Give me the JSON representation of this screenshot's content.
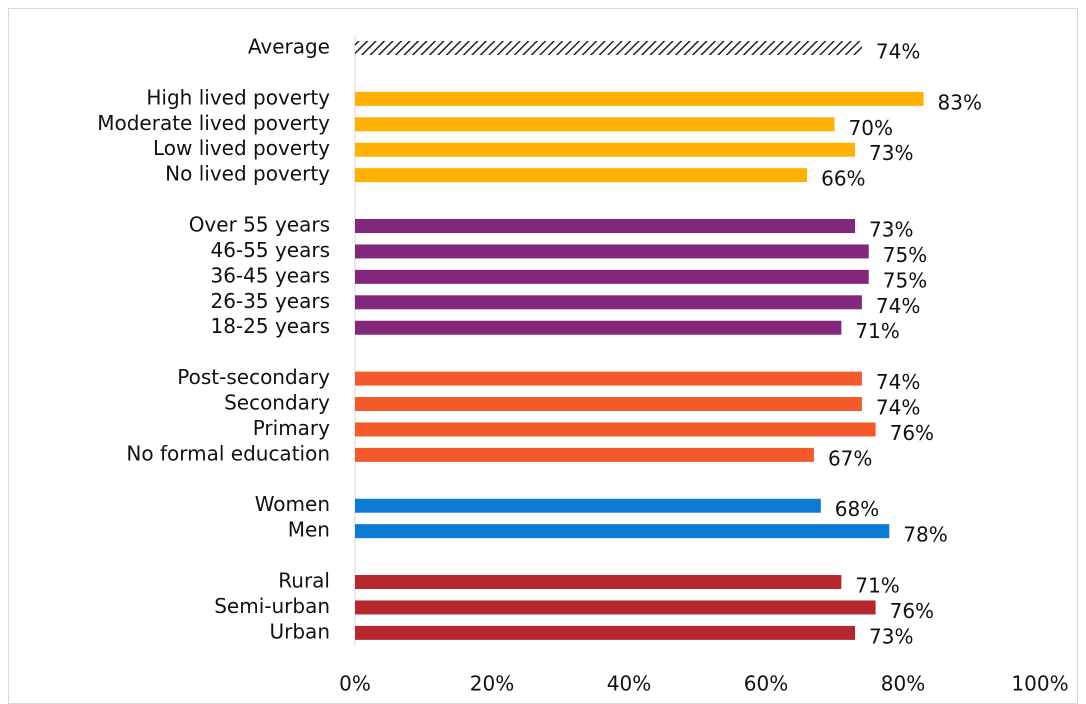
{
  "chart_data": {
    "type": "bar",
    "orientation": "horizontal",
    "categories": [
      "Average",
      null,
      "High lived poverty",
      "Moderate lived poverty",
      "Low lived poverty",
      "No lived poverty",
      null,
      "Over 55 years",
      "46-55 years",
      "36-45 years",
      "26-35 years",
      "18-25 years",
      null,
      "Post-secondary",
      "Secondary",
      "Primary",
      "No formal education",
      null,
      "Women",
      "Men",
      null,
      "Rural",
      "Semi-urban",
      "Urban"
    ],
    "values": [
      74,
      null,
      83,
      70,
      73,
      66,
      null,
      73,
      75,
      75,
      74,
      71,
      null,
      74,
      74,
      76,
      67,
      null,
      68,
      78,
      null,
      71,
      76,
      73
    ],
    "value_labels": [
      "74%",
      null,
      "83%",
      "70%",
      "73%",
      "66%",
      null,
      "73%",
      "75%",
      "75%",
      "74%",
      "71%",
      null,
      "74%",
      "74%",
      "76%",
      "67%",
      null,
      "68%",
      "78%",
      null,
      "71%",
      "76%",
      "73%"
    ],
    "colors": [
      "#222222",
      null,
      "#FFB000",
      "#FFB000",
      "#FFB000",
      "#FFB000",
      null,
      "#83277C",
      "#83277C",
      "#83277C",
      "#83277C",
      "#83277C",
      null,
      "#F55A2C",
      "#F55A2C",
      "#F55A2C",
      "#F55A2C",
      null,
      "#0B7BD6",
      "#0B7BD6",
      null,
      "#B5272D",
      "#B5272D",
      "#B5272D"
    ],
    "patterns": [
      "hatch",
      null,
      null,
      null,
      null,
      null,
      null,
      null,
      null,
      null,
      null,
      null,
      null,
      null,
      null,
      null,
      null,
      null,
      null,
      null,
      null,
      null,
      null,
      null
    ],
    "xlim": [
      0,
      100
    ],
    "xticks": [
      {
        "value": 0,
        "label": "0%"
      },
      {
        "value": 20,
        "label": "20%"
      },
      {
        "value": 40,
        "label": "40%"
      },
      {
        "value": 60,
        "label": "60%"
      },
      {
        "value": 80,
        "label": "80%"
      },
      {
        "value": 100,
        "label": "100%"
      }
    ],
    "grid": false
  }
}
